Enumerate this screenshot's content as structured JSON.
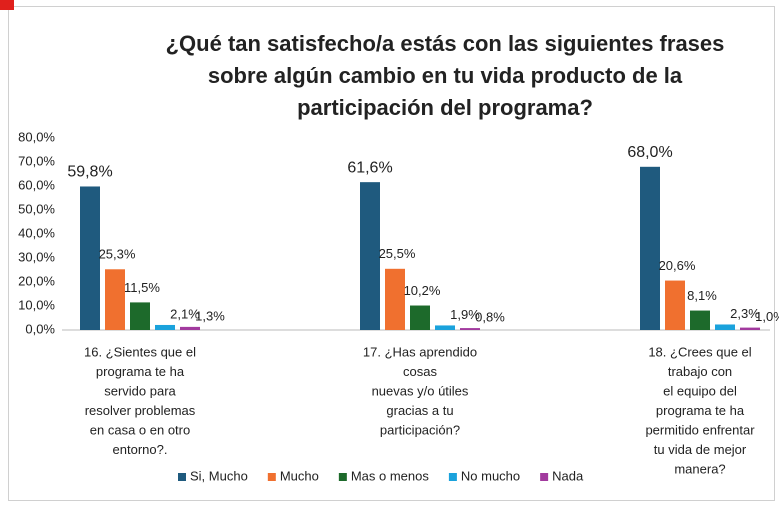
{
  "chart_data": {
    "type": "bar",
    "title": [
      "¿Qué tan satisfecho/a estás con las siguientes frases",
      "sobre algún cambio  en tu vida producto de la",
      "participación  del programa?"
    ],
    "categories": [
      [
        "16. ¿Sientes que el",
        "programa te ha",
        "servido para",
        "resolver problemas",
        "en casa o en otro",
        "entorno?."
      ],
      [
        "17. ¿Has aprendido",
        "cosas",
        "nuevas y/o útiles",
        "gracias a tu",
        "participación?"
      ],
      [
        "18. ¿Crees que el",
        "trabajo con",
        "el equipo del",
        "programa te ha",
        "permitido enfrentar",
        "tu vida de mejor",
        "manera?"
      ]
    ],
    "series": [
      {
        "name": "Si, Mucho",
        "color": "#1f5a7e",
        "values": [
          59.8,
          61.6,
          68.0
        ],
        "value_labels": [
          "59,8%",
          "61,6%",
          "68,0%"
        ]
      },
      {
        "name": "Mucho",
        "color": "#f0702f",
        "values": [
          25.3,
          25.5,
          20.6
        ],
        "value_labels": [
          "25,3%",
          "25,5%",
          "20,6%"
        ]
      },
      {
        "name": "Mas o menos",
        "color": "#1d6a2b",
        "values": [
          11.5,
          10.2,
          8.1
        ],
        "value_labels": [
          "11,5%",
          "10,2%",
          "8,1%"
        ]
      },
      {
        "name": "No mucho",
        "color": "#1aa2dc",
        "values": [
          2.1,
          1.9,
          2.3
        ],
        "value_labels": [
          "2,1%",
          "1,9%",
          "2,3%"
        ]
      },
      {
        "name": "Nada",
        "color": "#a23a9e",
        "values": [
          1.3,
          0.8,
          1.0
        ],
        "value_labels": [
          "1,3%",
          "0,8%",
          "1,0%"
        ]
      }
    ],
    "ylim": [
      0,
      80
    ],
    "yticks": [
      {
        "value": 0,
        "label": "0,0%"
      },
      {
        "value": 10,
        "label": "10,0%"
      },
      {
        "value": 20,
        "label": "20,0%"
      },
      {
        "value": 30,
        "label": "30,0%"
      },
      {
        "value": 40,
        "label": "40,0%"
      },
      {
        "value": 50,
        "label": "50,0%"
      },
      {
        "value": 60,
        "label": "60,0%"
      },
      {
        "value": 70,
        "label": "70,0%"
      },
      {
        "value": 80,
        "label": "80,0%"
      }
    ]
  }
}
